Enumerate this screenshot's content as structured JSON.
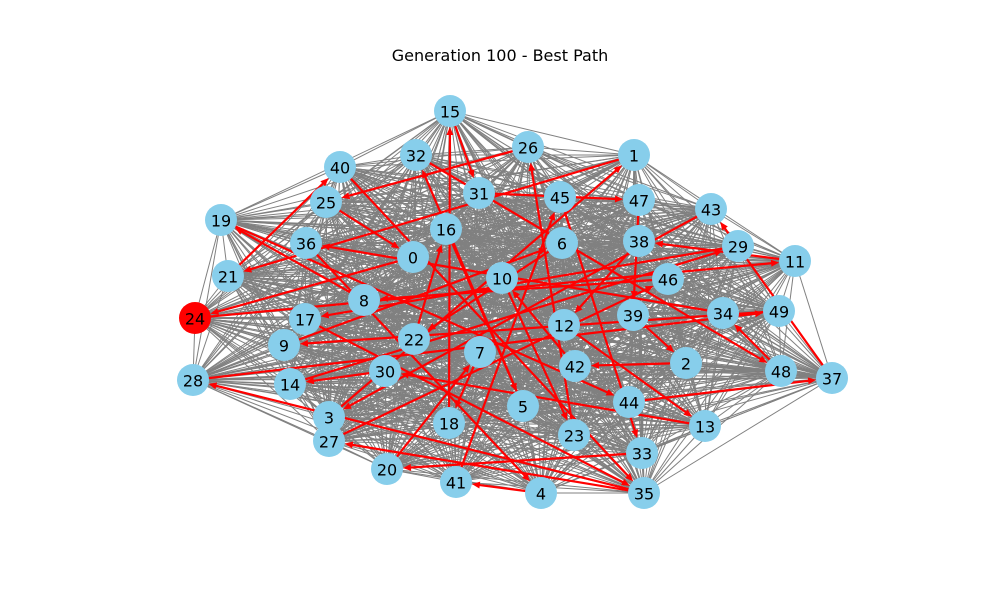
{
  "title": "Generation 100 - Best Path",
  "colors": {
    "node_fill": "#87ceeb",
    "start_node_fill": "#ff0000",
    "background_edge": "#808080",
    "path_edge": "#ff0000"
  },
  "graph": {
    "complete_graph": true,
    "start_node": "24",
    "nodes": [
      "0",
      "1",
      "2",
      "3",
      "4",
      "5",
      "6",
      "7",
      "8",
      "9",
      "10",
      "11",
      "12",
      "13",
      "14",
      "15",
      "16",
      "17",
      "18",
      "19",
      "20",
      "21",
      "22",
      "23",
      "24",
      "25",
      "26",
      "27",
      "28",
      "29",
      "30",
      "31",
      "32",
      "33",
      "34",
      "35",
      "36",
      "37",
      "38",
      "39",
      "40",
      "41",
      "42",
      "43",
      "44",
      "45",
      "46",
      "47",
      "48",
      "49"
    ],
    "best_path": [
      [
        "24",
        "11"
      ],
      [
        "11",
        "38"
      ],
      [
        "38",
        "12"
      ],
      [
        "12",
        "13"
      ],
      [
        "13",
        "30"
      ],
      [
        "30",
        "14"
      ],
      [
        "14",
        "29"
      ],
      [
        "29",
        "17"
      ],
      [
        "17",
        "35"
      ],
      [
        "35",
        "27"
      ],
      [
        "27",
        "46"
      ],
      [
        "46",
        "8"
      ],
      [
        "8",
        "19"
      ],
      [
        "19",
        "44"
      ],
      [
        "44",
        "37"
      ],
      [
        "37",
        "43"
      ],
      [
        "43",
        "3"
      ],
      [
        "3",
        "1"
      ],
      [
        "1",
        "21"
      ],
      [
        "21",
        "40"
      ],
      [
        "40",
        "35"
      ],
      [
        "35",
        "28"
      ],
      [
        "28",
        "49"
      ],
      [
        "49",
        "9"
      ],
      [
        "9",
        "6"
      ],
      [
        "6",
        "22"
      ],
      [
        "22",
        "16"
      ],
      [
        "16",
        "5"
      ],
      [
        "5",
        "32"
      ],
      [
        "32",
        "48"
      ],
      [
        "48",
        "34"
      ],
      [
        "34",
        "36"
      ],
      [
        "36",
        "4"
      ],
      [
        "4",
        "41"
      ],
      [
        "41",
        "45"
      ],
      [
        "45",
        "33"
      ],
      [
        "33",
        "20"
      ],
      [
        "20",
        "7"
      ],
      [
        "7",
        "18"
      ],
      [
        "18",
        "15"
      ],
      [
        "15",
        "31"
      ],
      [
        "31",
        "47"
      ],
      [
        "47",
        "39"
      ],
      [
        "39",
        "2"
      ],
      [
        "2",
        "42"
      ],
      [
        "42",
        "10"
      ],
      [
        "10",
        "23"
      ],
      [
        "23",
        "26"
      ],
      [
        "26",
        "25"
      ],
      [
        "25",
        "0"
      ],
      [
        "0",
        "24"
      ]
    ]
  }
}
